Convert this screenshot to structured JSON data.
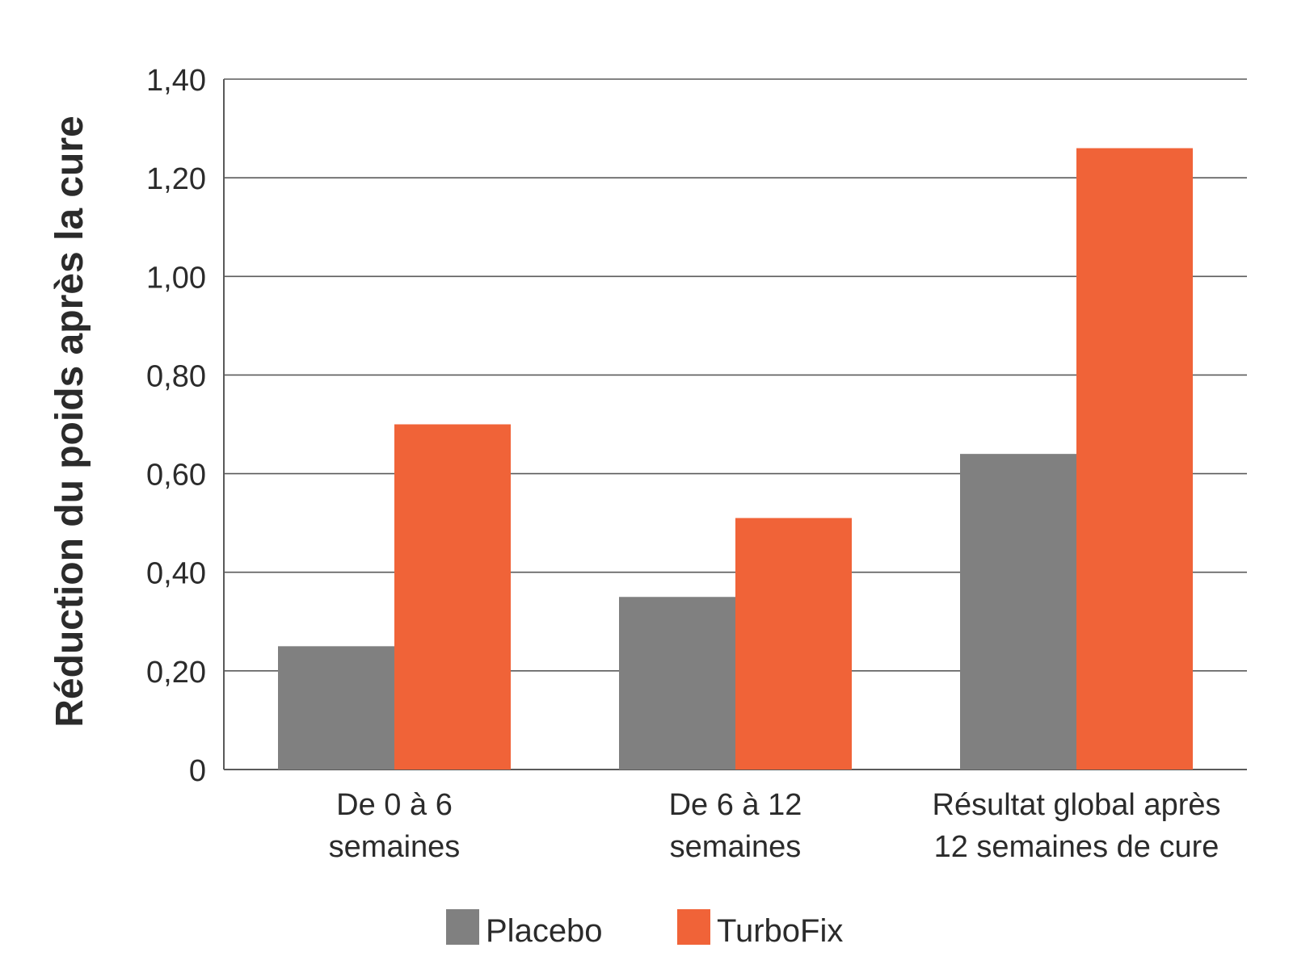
{
  "chart_data": {
    "type": "bar",
    "title": "",
    "ylabel": "Réduction du poids après la cure",
    "xlabel": "",
    "ylim": [
      0,
      1.4
    ],
    "yticks": [
      {
        "value": 0,
        "label": "0"
      },
      {
        "value": 0.2,
        "label": "0,20"
      },
      {
        "value": 0.4,
        "label": "0,40"
      },
      {
        "value": 0.6,
        "label": "0,60"
      },
      {
        "value": 0.8,
        "label": "0,80"
      },
      {
        "value": 1.0,
        "label": "1,00"
      },
      {
        "value": 1.2,
        "label": "1,20"
      },
      {
        "value": 1.4,
        "label": "1,40"
      }
    ],
    "categories": [
      [
        "De 0 à 6",
        "semaines"
      ],
      [
        "De 6 à 12",
        "semaines"
      ],
      [
        "Résultat global après",
        "12 semaines de cure"
      ]
    ],
    "series": [
      {
        "name": "Placebo",
        "color": "#808080",
        "values": [
          0.25,
          0.35,
          0.64
        ]
      },
      {
        "name": "TurboFix",
        "color": "#f06338",
        "values": [
          0.7,
          0.51,
          1.26
        ]
      }
    ],
    "grid": true,
    "gridline_color": "#5a5a5a",
    "legend_position": "bottom-center"
  }
}
